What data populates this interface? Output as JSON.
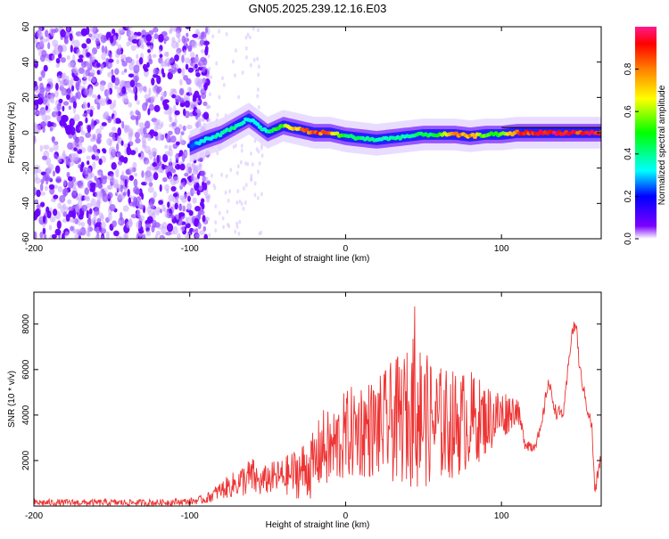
{
  "title": "GN05.2025.239.12.16.E03",
  "chart_data": [
    {
      "type": "heatmap",
      "title": "GN05.2025.239.12.16.E03",
      "xlabel": "Height of straight line (km)",
      "ylabel": "Frequency (Hz)",
      "xlim": [
        -200,
        164
      ],
      "ylim": [
        -60,
        60
      ],
      "xticks": [
        -200,
        -100,
        0,
        100
      ],
      "yticks": [
        60,
        40,
        20,
        0,
        -20,
        -40,
        -60
      ],
      "colorbar": {
        "label": "Normalized spectral amplitude",
        "range": [
          0,
          1
        ],
        "ticks": [
          0.0,
          0.2,
          0.4,
          0.6,
          0.8
        ],
        "colors": [
          "#ffffff",
          "#7b00ff",
          "#0000ff",
          "#00ffff",
          "#00ff00",
          "#ffff00",
          "#ff8000",
          "#ff0000",
          "#ff1a8c"
        ]
      },
      "noise_region_end_km": -88,
      "signal_onset_km": -100,
      "ridge": {
        "height_km": [
          -100,
          -90,
          -80,
          -70,
          -62,
          -50,
          -40,
          -30,
          -20,
          -10,
          0,
          10,
          20,
          30,
          40,
          50,
          60,
          70,
          80,
          90,
          100,
          110,
          120,
          130,
          140,
          150,
          164
        ],
        "frequency_hz": [
          -8,
          -4,
          -1,
          4,
          8,
          0,
          4,
          2,
          0,
          0,
          -2,
          -3,
          -4,
          -3,
          -2,
          -1,
          -1,
          -1,
          -2,
          -1,
          -1,
          0,
          0,
          0,
          0,
          0,
          0
        ],
        "amplitude": [
          0.25,
          0.35,
          0.4,
          0.4,
          0.35,
          0.4,
          0.6,
          0.8,
          0.9,
          0.85,
          0.45,
          0.45,
          0.4,
          0.4,
          0.4,
          0.45,
          0.5,
          0.85,
          0.8,
          0.55,
          0.55,
          0.9,
          0.95,
          0.95,
          0.95,
          0.95,
          0.9
        ]
      }
    },
    {
      "type": "line",
      "xlabel": "Height of straight line (km)",
      "ylabel": "SNR (10 * v/v)",
      "xlim": [
        -200,
        164
      ],
      "ylim": [
        0,
        9400
      ],
      "xticks": [
        -200,
        -100,
        0,
        100
      ],
      "yticks": [
        2000,
        4000,
        6000,
        8000
      ],
      "color": "#ee3333",
      "series": [
        {
          "name": "SNR",
          "x": [
            -200,
            -180,
            -160,
            -140,
            -120,
            -100,
            -90,
            -80,
            -70,
            -60,
            -55,
            -50,
            -40,
            -30,
            -20,
            -15,
            -10,
            0,
            10,
            20,
            30,
            40,
            45,
            50,
            60,
            70,
            80,
            90,
            100,
            110,
            115,
            120,
            125,
            130,
            135,
            140,
            145,
            148,
            150,
            155,
            158,
            160,
            162,
            164
          ],
          "y": [
            150,
            150,
            150,
            150,
            150,
            200,
            300,
            700,
            1000,
            1300,
            1000,
            1200,
            1300,
            1500,
            1800,
            2600,
            2400,
            3100,
            3400,
            3400,
            3700,
            3900,
            4200,
            3800,
            3600,
            3600,
            3800,
            3800,
            4000,
            4300,
            2800,
            2600,
            3200,
            5500,
            4100,
            4100,
            7600,
            8000,
            6100,
            4300,
            3500,
            500,
            1500,
            2200
          ],
          "amplitude": [
            150,
            150,
            150,
            150,
            150,
            150,
            200,
            400,
            600,
            900,
            600,
            700,
            800,
            1200,
            1500,
            1700,
            1800,
            2000,
            2200,
            2200,
            2700,
            3000,
            3600,
            3000,
            2600,
            2400,
            2200,
            1600,
            1200,
            600,
            300,
            300,
            300,
            300,
            300,
            300,
            300,
            300,
            300,
            300,
            300,
            300,
            300,
            300
          ]
        }
      ]
    }
  ]
}
